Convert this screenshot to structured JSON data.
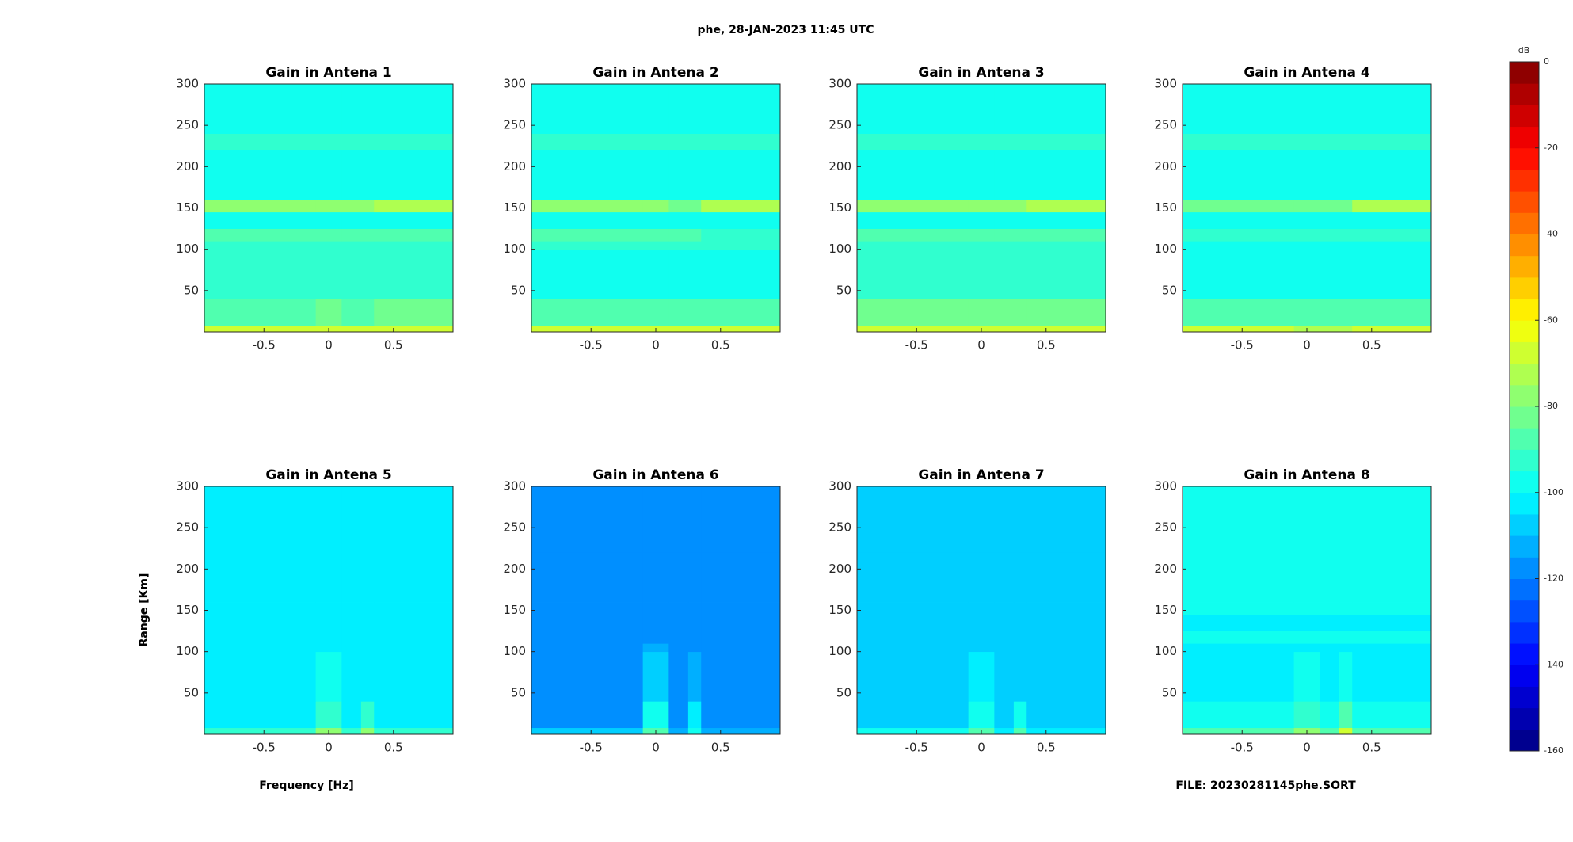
{
  "figure": {
    "title": "phe, 28-JAN-2023 11:45 UTC",
    "x_label": "Frequency [Hz]",
    "y_label": "Range [Km]",
    "annotation": "FILE: 20230281145phe.SORT",
    "colorbar": {
      "label": "dB",
      "clim": [
        -160,
        0
      ],
      "ticks": [
        0,
        -20,
        -40,
        -60,
        -80,
        -100,
        -120,
        -140,
        -160
      ],
      "colormap": "jet",
      "levels": 32
    }
  },
  "chart_data": [
    {
      "type": "heatmap",
      "title": "Gain in Antena 1",
      "xlim": [
        -0.96,
        0.96
      ],
      "ylim": [
        0,
        300
      ],
      "xticks": [
        -0.5,
        0,
        0.5
      ],
      "yticks": [
        50,
        100,
        150,
        200,
        250,
        300
      ],
      "x_bins": [
        -0.96,
        -0.1,
        0.1,
        0.25,
        0.35,
        0.96
      ],
      "y_bins": [
        0,
        8,
        40,
        100,
        110,
        125,
        145,
        160,
        220,
        240,
        300
      ],
      "z": [
        [
          -68,
          -68,
          -68,
          -68,
          -66
        ],
        [
          -86,
          -85,
          -86,
          -86,
          -85
        ],
        [
          -95,
          -95,
          -95,
          -95,
          -95
        ],
        [
          -94,
          -94,
          -94,
          -94,
          -94
        ],
        [
          -89,
          -89,
          -89,
          -89,
          -90
        ],
        [
          -96,
          -96,
          -96,
          -96,
          -96
        ],
        [
          -79,
          -80,
          -80,
          -80,
          -74
        ],
        [
          -97,
          -97,
          -97,
          -97,
          -97
        ],
        [
          -91,
          -91,
          -91,
          -91,
          -91
        ],
        [
          -98,
          -98,
          -98,
          -98,
          -98
        ]
      ]
    },
    {
      "type": "heatmap",
      "title": "Gain in Antena 2",
      "xlim": [
        -0.96,
        0.96
      ],
      "ylim": [
        0,
        300
      ],
      "xticks": [
        -0.5,
        0,
        0.5
      ],
      "yticks": [
        50,
        100,
        150,
        200,
        250,
        300
      ],
      "x_bins": [
        -0.96,
        -0.1,
        0.1,
        0.25,
        0.35,
        0.96
      ],
      "y_bins": [
        0,
        8,
        40,
        100,
        110,
        125,
        145,
        160,
        220,
        240,
        300
      ],
      "z": [
        [
          -70,
          -70,
          -70,
          -69,
          -68
        ],
        [
          -87,
          -86,
          -87,
          -87,
          -86
        ],
        [
          -96,
          -96,
          -96,
          -96,
          -96
        ],
        [
          -95,
          -95,
          -95,
          -95,
          -95
        ],
        [
          -90,
          -90,
          -90,
          -90,
          -91
        ],
        [
          -97,
          -97,
          -97,
          -97,
          -97
        ],
        [
          -80,
          -79,
          -81,
          -81,
          -75
        ],
        [
          -97,
          -97,
          -97,
          -97,
          -97
        ],
        [
          -93,
          -93,
          -93,
          -93,
          -93
        ],
        [
          -98,
          -98,
          -98,
          -98,
          -98
        ]
      ]
    },
    {
      "type": "heatmap",
      "title": "Gain in Antena 3",
      "xlim": [
        -0.96,
        0.96
      ],
      "ylim": [
        0,
        300
      ],
      "xticks": [
        -0.5,
        0,
        0.5
      ],
      "yticks": [
        50,
        100,
        150,
        200,
        250,
        300
      ],
      "x_bins": [
        -0.96,
        -0.1,
        0.1,
        0.25,
        0.35,
        0.96
      ],
      "y_bins": [
        0,
        8,
        40,
        100,
        110,
        125,
        145,
        160,
        220,
        240,
        300
      ],
      "z": [
        [
          -67,
          -67,
          -68,
          -68,
          -67
        ],
        [
          -85,
          -85,
          -85,
          -85,
          -85
        ],
        [
          -95,
          -95,
          -95,
          -95,
          -95
        ],
        [
          -94,
          -94,
          -94,
          -94,
          -94
        ],
        [
          -88,
          -88,
          -88,
          -88,
          -89
        ],
        [
          -96,
          -96,
          -96,
          -96,
          -96
        ],
        [
          -77,
          -77,
          -78,
          -77,
          -74
        ],
        [
          -97,
          -97,
          -97,
          -97,
          -97
        ],
        [
          -91,
          -91,
          -91,
          -91,
          -91
        ],
        [
          -98,
          -98,
          -98,
          -98,
          -98
        ]
      ]
    },
    {
      "type": "heatmap",
      "title": "Gain in Antena 4",
      "xlim": [
        -0.96,
        0.96
      ],
      "ylim": [
        0,
        300
      ],
      "xticks": [
        -0.5,
        0,
        0.5
      ],
      "yticks": [
        50,
        100,
        150,
        200,
        250,
        300
      ],
      "x_bins": [
        -0.96,
        -0.1,
        0.1,
        0.25,
        0.35,
        0.96
      ],
      "y_bins": [
        0,
        8,
        40,
        100,
        110,
        125,
        145,
        160,
        220,
        240,
        300
      ],
      "z": [
        [
          -70,
          -71,
          -71,
          -71,
          -70
        ],
        [
          -88,
          -88,
          -88,
          -88,
          -88
        ],
        [
          -97,
          -97,
          -97,
          -97,
          -97
        ],
        [
          -96,
          -96,
          -96,
          -96,
          -96
        ],
        [
          -91,
          -91,
          -91,
          -91,
          -92
        ],
        [
          -98,
          -98,
          -98,
          -98,
          -98
        ],
        [
          -81,
          -82,
          -82,
          -82,
          -74
        ],
        [
          -99,
          -99,
          -99,
          -99,
          -99
        ],
        [
          -95,
          -95,
          -95,
          -95,
          -95
        ],
        [
          -99,
          -99,
          -99,
          -99,
          -99
        ]
      ]
    },
    {
      "type": "heatmap",
      "title": "Gain in Antena 5",
      "xlim": [
        -0.96,
        0.96
      ],
      "ylim": [
        0,
        300
      ],
      "xticks": [
        -0.5,
        0,
        0.5
      ],
      "yticks": [
        50,
        100,
        150,
        200,
        250,
        300
      ],
      "x_bins": [
        -0.96,
        -0.1,
        0.1,
        0.25,
        0.35,
        0.96
      ],
      "y_bins": [
        0,
        8,
        40,
        100,
        110,
        125,
        145,
        160,
        220,
        240,
        300
      ],
      "z": [
        [
          -92,
          -80,
          -92,
          -78,
          -93
        ],
        [
          -103,
          -91,
          -103,
          -92,
          -103
        ],
        [
          -105,
          -99,
          -105,
          -101,
          -105
        ],
        [
          -105,
          -104,
          -105,
          -105,
          -105
        ],
        [
          -104,
          -104,
          -104,
          -104,
          -104
        ],
        [
          -105,
          -105,
          -105,
          -105,
          -105
        ],
        [
          -104,
          -104,
          -104,
          -104,
          -104
        ],
        [
          -104,
          -104,
          -104,
          -104,
          -104
        ],
        [
          -104,
          -104,
          -104,
          -104,
          -104
        ],
        [
          -104,
          -104,
          -104,
          -104,
          -104
        ]
      ]
    },
    {
      "type": "heatmap",
      "title": "Gain in Antena 6",
      "xlim": [
        -0.96,
        0.96
      ],
      "ylim": [
        0,
        300
      ],
      "xticks": [
        -0.5,
        0,
        0.5
      ],
      "yticks": [
        50,
        100,
        150,
        200,
        250,
        300
      ],
      "x_bins": [
        -0.96,
        -0.1,
        0.1,
        0.25,
        0.35,
        0.96
      ],
      "y_bins": [
        0,
        8,
        40,
        100,
        110,
        125,
        145,
        160,
        220,
        240,
        300
      ],
      "z": [
        [
          -110,
          -86,
          -112,
          -98,
          -114
        ],
        [
          -116,
          -100,
          -116,
          -104,
          -116
        ],
        [
          -117,
          -106,
          -117,
          -112,
          -117
        ],
        [
          -117,
          -114,
          -117,
          -117,
          -117
        ],
        [
          -117,
          -117,
          -117,
          -117,
          -117
        ],
        [
          -117,
          -117,
          -117,
          -117,
          -117
        ],
        [
          -116,
          -116,
          -116,
          -116,
          -116
        ],
        [
          -117,
          -117,
          -117,
          -117,
          -117
        ],
        [
          -116,
          -116,
          -116,
          -116,
          -116
        ],
        [
          -116,
          -116,
          -116,
          -116,
          -116
        ]
      ]
    },
    {
      "type": "heatmap",
      "title": "Gain in Antena 7",
      "xlim": [
        -0.96,
        0.96
      ],
      "ylim": [
        0,
        300
      ],
      "xticks": [
        -0.5,
        0,
        0.5
      ],
      "yticks": [
        50,
        100,
        150,
        200,
        250,
        300
      ],
      "x_bins": [
        -0.96,
        -0.1,
        0.1,
        0.25,
        0.35,
        0.96
      ],
      "y_bins": [
        0,
        8,
        40,
        100,
        110,
        125,
        145,
        160,
        220,
        240,
        300
      ],
      "z": [
        [
          -100,
          -86,
          -103,
          -90,
          -104
        ],
        [
          -108,
          -96,
          -108,
          -98,
          -108
        ],
        [
          -109,
          -103,
          -109,
          -106,
          -109
        ],
        [
          -109,
          -108,
          -109,
          -109,
          -109
        ],
        [
          -109,
          -109,
          -109,
          -109,
          -109
        ],
        [
          -109,
          -109,
          -109,
          -109,
          -109
        ],
        [
          -108,
          -108,
          -108,
          -108,
          -108
        ],
        [
          -109,
          -109,
          -109,
          -109,
          -109
        ],
        [
          -108,
          -108,
          -108,
          -108,
          -108
        ],
        [
          -108,
          -108,
          -108,
          -108,
          -108
        ]
      ]
    },
    {
      "type": "heatmap",
      "title": "Gain in Antena 8",
      "xlim": [
        -0.96,
        0.96
      ],
      "ylim": [
        0,
        300
      ],
      "xticks": [
        -0.5,
        0,
        0.5
      ],
      "yticks": [
        50,
        100,
        150,
        200,
        250,
        300
      ],
      "x_bins": [
        -0.96,
        -0.1,
        0.1,
        0.25,
        0.35,
        0.96
      ],
      "y_bins": [
        0,
        8,
        40,
        100,
        110,
        125,
        145,
        160,
        220,
        240,
        300
      ],
      "z": [
        [
          -86,
          -80,
          -88,
          -70,
          -88
        ],
        [
          -99,
          -94,
          -99,
          -88,
          -99
        ],
        [
          -101,
          -100,
          -101,
          -96,
          -101
        ],
        [
          -101,
          -101,
          -101,
          -101,
          -101
        ],
        [
          -100,
          -100,
          -100,
          -100,
          -100
        ],
        [
          -101,
          -101,
          -101,
          -101,
          -101
        ],
        [
          -100,
          -100,
          -100,
          -100,
          -100
        ],
        [
          -100,
          -100,
          -100,
          -100,
          -100
        ],
        [
          -100,
          -100,
          -100,
          -100,
          -100
        ],
        [
          -100,
          -100,
          -100,
          -100,
          -100
        ]
      ]
    }
  ]
}
